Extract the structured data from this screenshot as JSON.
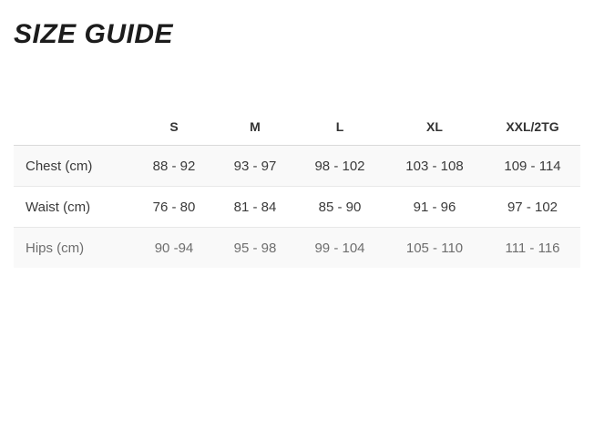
{
  "page": {
    "title": "SIZE GUIDE"
  },
  "size_table": {
    "columns": [
      "",
      "S",
      "M",
      "L",
      "XL",
      "XXL/2TG"
    ],
    "rows": [
      {
        "label": "Chest (cm)",
        "values": [
          "88 - 92",
          "93 - 97",
          "98 - 102",
          "103 - 108",
          "109 - 114"
        ]
      },
      {
        "label": "Waist (cm)",
        "values": [
          "76 - 80",
          "81 - 84",
          "85 - 90",
          "91 - 96",
          "97 - 102"
        ]
      },
      {
        "label": "Hips (cm)",
        "values": [
          "90 -94",
          "95 - 98",
          "99 - 104",
          "105 - 110",
          "111 - 116"
        ]
      }
    ]
  },
  "colors": {
    "title_text": "#1c1c1c",
    "header_text": "#333333",
    "body_text": "#3a3a3a",
    "muted_row_text": "#6e6e6e",
    "stripe_background": "#f9f9f9",
    "header_border": "#d9d9d9",
    "row_border": "#e8e8e8",
    "page_background": "#ffffff"
  }
}
